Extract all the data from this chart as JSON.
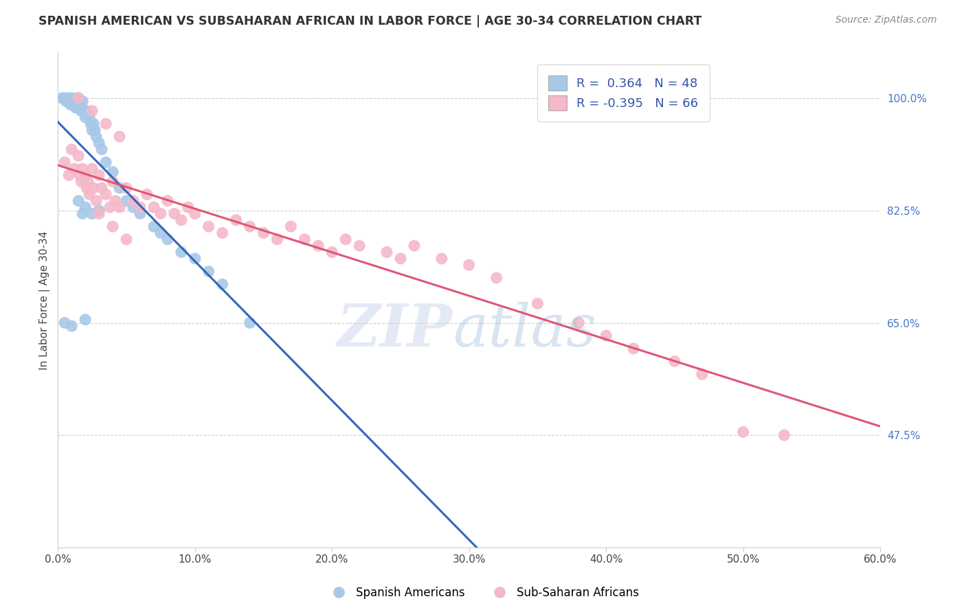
{
  "title": "SPANISH AMERICAN VS SUBSAHARAN AFRICAN IN LABOR FORCE | AGE 30-34 CORRELATION CHART",
  "source": "Source: ZipAtlas.com",
  "ylabel": "In Labor Force | Age 30-34",
  "x_tick_labels": [
    "0.0%",
    "10.0%",
    "20.0%",
    "30.0%",
    "40.0%",
    "50.0%",
    "60.0%"
  ],
  "x_tick_values": [
    0.0,
    10.0,
    20.0,
    30.0,
    40.0,
    50.0,
    60.0
  ],
  "y_tick_labels": [
    "47.5%",
    "65.0%",
    "82.5%",
    "100.0%"
  ],
  "y_tick_values": [
    47.5,
    65.0,
    82.5,
    100.0
  ],
  "xlim": [
    0.0,
    60.0
  ],
  "ylim": [
    30.0,
    107.0
  ],
  "blue_R": 0.364,
  "blue_N": 48,
  "pink_R": -0.395,
  "pink_N": 66,
  "blue_color": "#a8c8e8",
  "pink_color": "#f4b8c8",
  "blue_line_color": "#3366bb",
  "pink_line_color": "#e05575",
  "legend_label_blue": "Spanish Americans",
  "legend_label_pink": "Sub-Saharan Africans",
  "watermark_zip": "ZIP",
  "watermark_atlas": "atlas",
  "blue_x": [
    0.3,
    0.5,
    0.6,
    0.8,
    0.9,
    1.0,
    1.1,
    1.2,
    1.3,
    1.4,
    1.5,
    1.6,
    1.7,
    1.8,
    1.9,
    2.0,
    2.1,
    2.2,
    2.3,
    2.4,
    2.5,
    2.6,
    2.7,
    2.8,
    3.0,
    3.2,
    3.5,
    4.0,
    4.5,
    5.0,
    5.5,
    6.0,
    7.0,
    7.5,
    8.0,
    9.0,
    10.0,
    11.0,
    12.0,
    14.0,
    1.5,
    2.0,
    2.5,
    3.0,
    0.5,
    1.0,
    2.0,
    1.8
  ],
  "blue_y": [
    100.0,
    100.0,
    99.5,
    100.0,
    99.0,
    100.0,
    99.5,
    99.0,
    98.5,
    100.0,
    100.0,
    99.0,
    98.0,
    99.5,
    98.0,
    97.0,
    98.0,
    97.5,
    97.0,
    96.0,
    95.0,
    96.0,
    95.0,
    94.0,
    93.0,
    92.0,
    90.0,
    88.5,
    86.0,
    84.0,
    83.0,
    82.0,
    80.0,
    79.0,
    78.0,
    76.0,
    75.0,
    73.0,
    71.0,
    65.0,
    84.0,
    83.0,
    82.0,
    82.5,
    65.0,
    64.5,
    65.5,
    82.0
  ],
  "pink_x": [
    0.5,
    0.8,
    1.0,
    1.2,
    1.5,
    1.6,
    1.7,
    1.8,
    2.0,
    2.1,
    2.2,
    2.3,
    2.5,
    2.6,
    2.8,
    3.0,
    3.2,
    3.5,
    3.8,
    4.0,
    4.2,
    4.5,
    5.0,
    5.5,
    6.0,
    6.5,
    7.0,
    7.5,
    8.0,
    8.5,
    9.0,
    9.5,
    10.0,
    11.0,
    12.0,
    13.0,
    14.0,
    15.0,
    16.0,
    17.0,
    18.0,
    19.0,
    20.0,
    21.0,
    22.0,
    24.0,
    25.0,
    26.0,
    28.0,
    30.0,
    32.0,
    35.0,
    38.0,
    40.0,
    42.0,
    45.0,
    47.0,
    50.0,
    53.0,
    3.0,
    4.0,
    5.0,
    1.5,
    2.5,
    3.5,
    4.5
  ],
  "pink_y": [
    90.0,
    88.0,
    92.0,
    89.0,
    91.0,
    88.0,
    87.0,
    89.0,
    88.0,
    86.0,
    87.0,
    85.0,
    89.0,
    86.0,
    84.0,
    88.0,
    86.0,
    85.0,
    83.0,
    87.0,
    84.0,
    83.0,
    86.0,
    84.0,
    83.0,
    85.0,
    83.0,
    82.0,
    84.0,
    82.0,
    81.0,
    83.0,
    82.0,
    80.0,
    79.0,
    81.0,
    80.0,
    79.0,
    78.0,
    80.0,
    78.0,
    77.0,
    76.0,
    78.0,
    77.0,
    76.0,
    75.0,
    77.0,
    75.0,
    74.0,
    72.0,
    68.0,
    65.0,
    63.0,
    61.0,
    59.0,
    57.0,
    48.0,
    47.5,
    82.0,
    80.0,
    78.0,
    100.0,
    98.0,
    96.0,
    94.0
  ]
}
